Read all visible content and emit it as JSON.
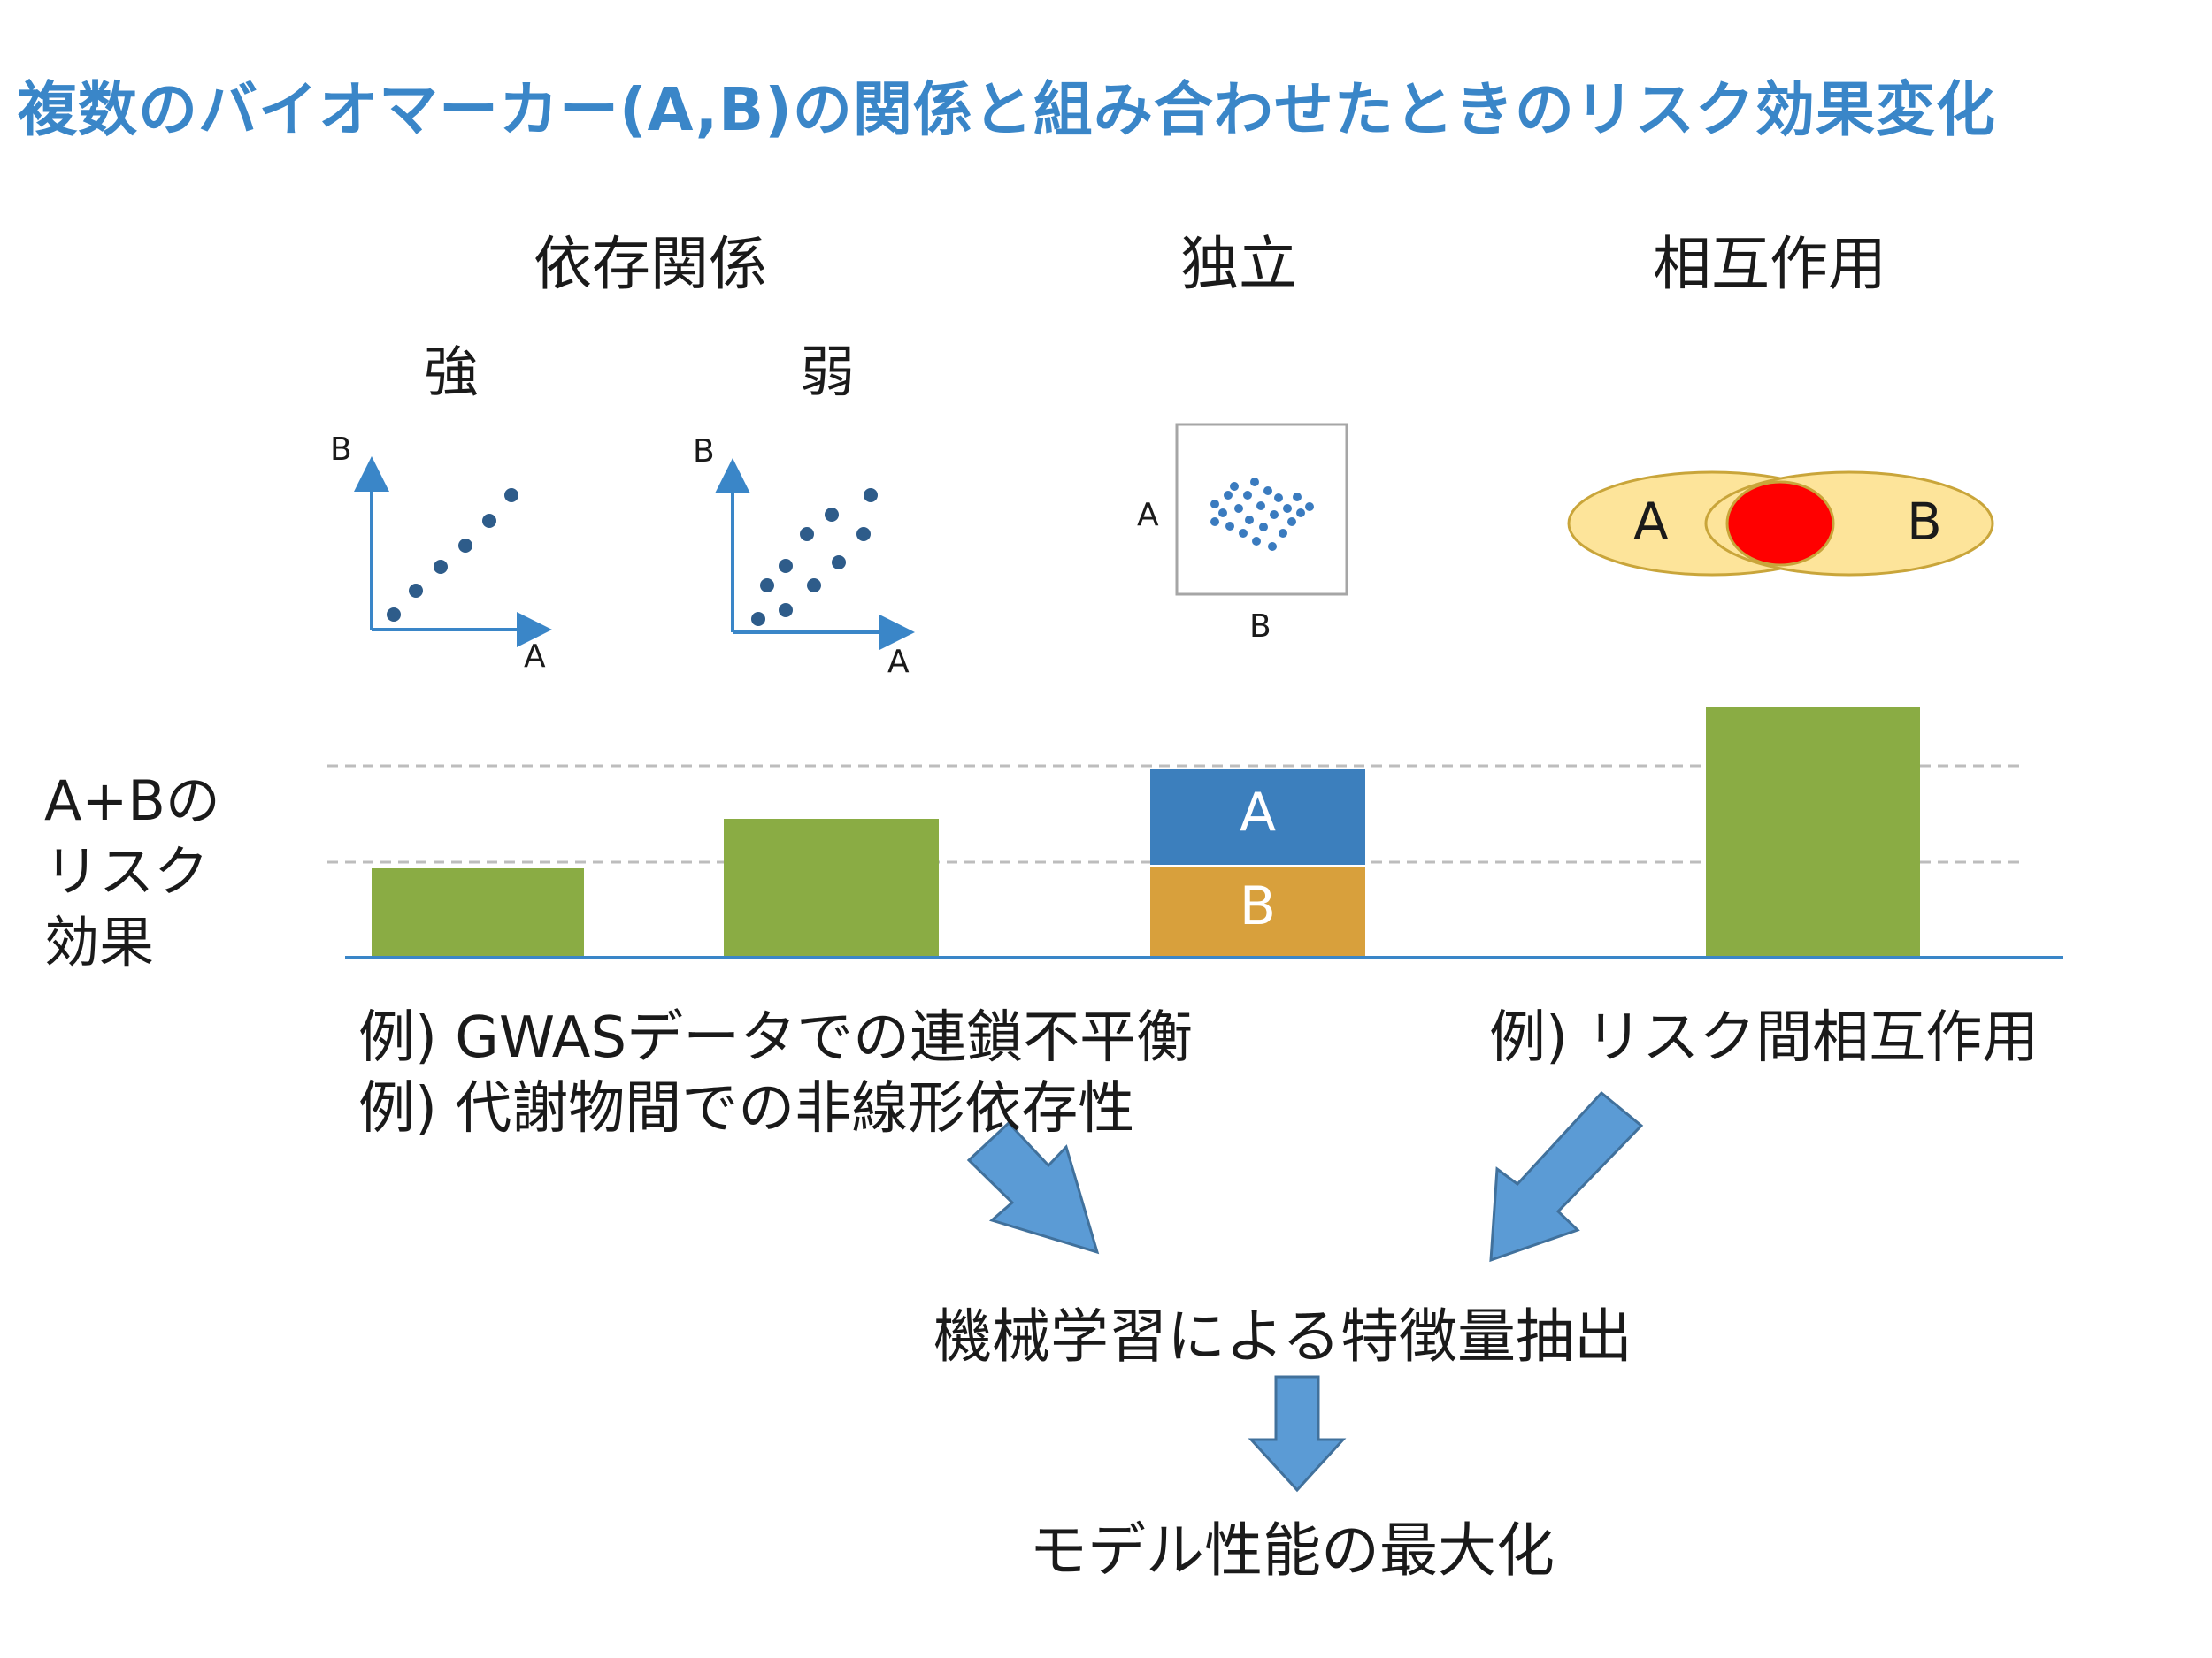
{
  "title": "複数のバイオマーカー(A,B)の関係と組み合わせたときのリスク効果変化",
  "headers": {
    "dependence": "依存関係",
    "independent": "独立",
    "interaction": "相互作用"
  },
  "subheaders": {
    "strong": "強",
    "weak": "弱"
  },
  "axis_labels": {
    "strong_y": "B",
    "strong_x": "A",
    "weak_y": "B",
    "weak_x": "A",
    "indep_y": "A",
    "indep_x": "B"
  },
  "venn": {
    "left": "A",
    "right": "B",
    "left_color": "#fde49a",
    "overlap_color": "#ff0000"
  },
  "y_axis_label": [
    "A+Bの",
    "リスク",
    "効果"
  ],
  "bars": {
    "stack_top_label": "A",
    "stack_bottom_label": "B",
    "green": "#8aac44",
    "blue": "#3c7fbd",
    "orange": "#d8a03c"
  },
  "examples": {
    "left_line1": "例) GWASデータでの連鎖不平衡",
    "left_line2": "例) 代謝物間での非線形依存性",
    "right": "例) リスク間相互作用"
  },
  "flow": {
    "step1": "機械学習による特徴量抽出",
    "step2": "モデル性能の最大化"
  },
  "colors": {
    "title": "#3a86c8",
    "axis": "#3a86c8",
    "dot": "#2e5c8a",
    "arrow": "#5b9bd5"
  }
}
